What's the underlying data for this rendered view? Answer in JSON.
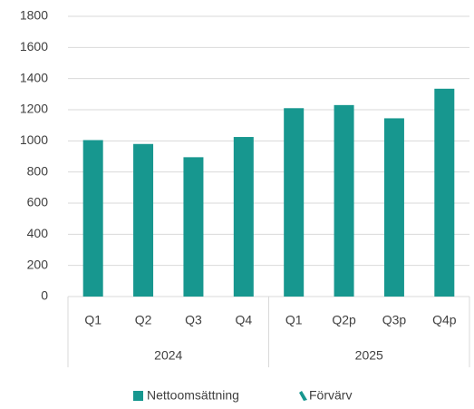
{
  "chart_data": {
    "type": "bar",
    "categories": [
      "Q1",
      "Q2",
      "Q3",
      "Q4",
      "Q1",
      "Q2p",
      "Q3p",
      "Q4p"
    ],
    "groups": [
      {
        "label": "2024",
        "span": 4
      },
      {
        "label": "2025",
        "span": 4
      }
    ],
    "series": [
      {
        "name": "Nettoomsättning",
        "color": "#17978f",
        "values": [
          1005,
          980,
          895,
          1025,
          1210,
          1230,
          1145,
          1335
        ]
      },
      {
        "name": "Förvärv",
        "color": "#17978f",
        "values": [
          null,
          null,
          null,
          null,
          null,
          null,
          null,
          null
        ]
      }
    ],
    "ylim": [
      0,
      1800
    ],
    "yticks": [
      0,
      200,
      400,
      600,
      800,
      1000,
      1200,
      1400,
      1600,
      1800
    ],
    "grid": true,
    "legend": "bottom"
  }
}
